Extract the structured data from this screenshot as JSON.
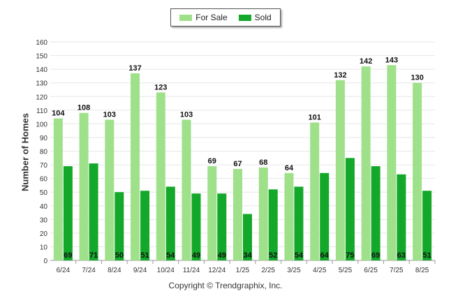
{
  "legend": {
    "for_sale_label": "For Sale",
    "sold_label": "Sold"
  },
  "colors": {
    "for_sale": "#9fe08a",
    "sold": "#14a82a",
    "grid": "#e6e6e6",
    "axis": "#999999"
  },
  "copyright": "Copyright © Trendgraphix, Inc.",
  "chart_data": {
    "type": "bar",
    "title": "",
    "xlabel": "",
    "ylabel": "Number of Homes",
    "ylim": [
      0,
      160
    ],
    "yticks": [
      0,
      10,
      20,
      30,
      40,
      50,
      60,
      70,
      80,
      90,
      100,
      110,
      120,
      130,
      140,
      150,
      160
    ],
    "grid": true,
    "legend_position": "top-center",
    "categories": [
      "6/24",
      "7/24",
      "8/24",
      "9/24",
      "10/24",
      "11/24",
      "12/24",
      "1/25",
      "2/25",
      "3/25",
      "4/25",
      "5/25",
      "6/25",
      "7/25",
      "8/25"
    ],
    "series": [
      {
        "name": "For Sale",
        "values": [
          104,
          108,
          103,
          137,
          123,
          103,
          69,
          67,
          68,
          64,
          101,
          132,
          142,
          143,
          130
        ]
      },
      {
        "name": "Sold",
        "values": [
          69,
          71,
          50,
          51,
          54,
          49,
          49,
          34,
          52,
          54,
          64,
          75,
          69,
          63,
          51
        ]
      }
    ]
  }
}
